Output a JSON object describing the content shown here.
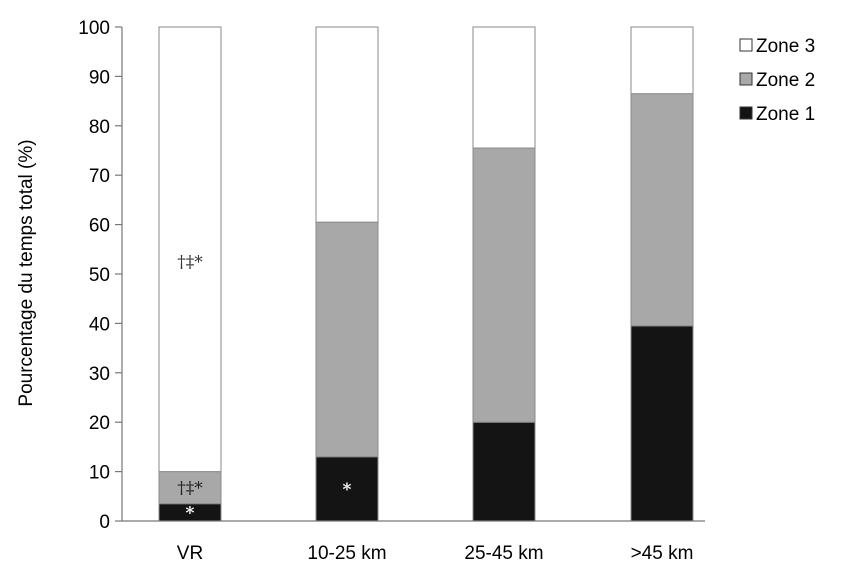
{
  "chart_data": {
    "type": "bar",
    "stacked": true,
    "ylabel": "Pourcentage du temps total (%)",
    "xlabel": "",
    "ylim": [
      0,
      100
    ],
    "yticks": [
      0,
      10,
      20,
      30,
      40,
      50,
      60,
      70,
      80,
      90,
      100
    ],
    "categories": [
      "VR",
      "10-25 km",
      "25-45 km",
      ">45 km"
    ],
    "series": [
      {
        "name": "Zone 1",
        "color": "#141414",
        "values": [
          3.5,
          13,
          20,
          39.5
        ]
      },
      {
        "name": "Zone 2",
        "color": "#a8a8a8",
        "values": [
          6.5,
          47.5,
          55.5,
          47
        ]
      },
      {
        "name": "Zone 3",
        "color": "#ffffff",
        "values": [
          90,
          39.5,
          24.5,
          13.5
        ]
      }
    ],
    "legend": {
      "placement": "top-right",
      "order": [
        "Zone 3",
        "Zone 2",
        "Zone 1"
      ]
    },
    "annotations": [
      {
        "category": "VR",
        "series": "Zone 3",
        "text": "†‡*",
        "color": "#333333"
      },
      {
        "category": "VR",
        "series": "Zone 2",
        "text": "†‡*",
        "color": "#222222"
      },
      {
        "category": "VR",
        "series": "Zone 1",
        "text": "*",
        "color": "#ffffff"
      },
      {
        "category": "10-25 km",
        "series": "Zone 1",
        "text": "*",
        "color": "#ffffff"
      }
    ]
  }
}
